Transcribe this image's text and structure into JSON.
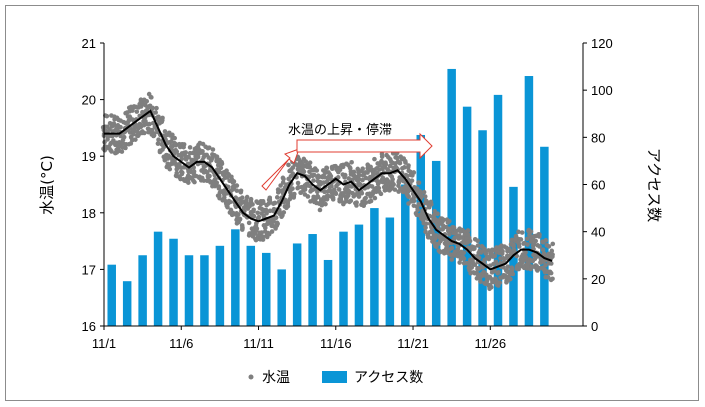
{
  "chart_data": {
    "type": "bar+scatter+line",
    "xlabel": "",
    "ylabel_left": "水温(°C)",
    "ylabel_right": "アクセス数",
    "y_left_lim": [
      16,
      21
    ],
    "y_left_ticks": [
      "16",
      "17",
      "18",
      "19",
      "20",
      "21"
    ],
    "y_right_lim": [
      0,
      120
    ],
    "y_right_ticks": [
      "0",
      "20",
      "40",
      "60",
      "80",
      "100",
      "120"
    ],
    "x_tick_labels": [
      "11/1",
      "11/6",
      "11/11",
      "11/16",
      "11/21",
      "11/26"
    ],
    "x_tick_days": [
      1,
      6,
      11,
      16,
      21,
      26
    ],
    "x_range_days": [
      1,
      31
    ],
    "legend": {
      "placement": "bottom",
      "items": [
        {
          "name": "水温",
          "marker": "dot"
        },
        {
          "name": "アクセス数",
          "marker": "bar"
        }
      ]
    },
    "annotation": "水温の上昇・停滞",
    "bar_series": {
      "name": "アクセス数",
      "color": "#0a95d6",
      "days": [
        1,
        2,
        3,
        4,
        5,
        6,
        7,
        8,
        9,
        10,
        11,
        12,
        13,
        14,
        15,
        16,
        17,
        18,
        19,
        20,
        21,
        22,
        23,
        24,
        25,
        26,
        27,
        28,
        29,
        30
      ],
      "values": [
        26,
        19,
        30,
        40,
        37,
        30,
        30,
        34,
        41,
        34,
        31,
        24,
        35,
        39,
        28,
        40,
        43,
        50,
        46,
        60,
        81,
        70,
        109,
        93,
        83,
        98,
        59,
        106,
        76,
        0
      ]
    },
    "temp_series": {
      "name": "水温",
      "color": "#7f7f7f",
      "days": [
        1.0,
        1.5,
        2.0,
        2.5,
        3.0,
        3.5,
        4.0,
        4.5,
        5.0,
        5.5,
        6.0,
        6.5,
        7.0,
        7.5,
        8.0,
        8.5,
        9.0,
        9.5,
        10.0,
        10.5,
        11.0,
        11.5,
        12.0,
        12.5,
        13.0,
        13.5,
        14.0,
        14.5,
        15.0,
        15.5,
        16.0,
        16.5,
        17.0,
        17.5,
        18.0,
        18.5,
        19.0,
        19.5,
        20.0,
        20.5,
        21.0,
        21.5,
        22.0,
        22.5,
        23.0,
        23.5,
        24.0,
        24.5,
        25.0,
        25.5,
        26.0,
        26.5,
        27.0,
        27.5,
        28.0,
        28.5,
        29.0,
        29.5,
        30.0
      ],
      "values": [
        19.4,
        19.4,
        19.4,
        19.5,
        19.6,
        19.7,
        19.8,
        19.5,
        19.2,
        19.0,
        18.9,
        18.8,
        18.9,
        18.9,
        18.8,
        18.6,
        18.4,
        18.2,
        18.0,
        17.9,
        17.85,
        17.9,
        17.95,
        18.2,
        18.5,
        18.7,
        18.65,
        18.5,
        18.4,
        18.5,
        18.6,
        18.5,
        18.55,
        18.4,
        18.5,
        18.6,
        18.7,
        18.7,
        18.75,
        18.6,
        18.4,
        18.2,
        17.9,
        17.7,
        17.6,
        17.5,
        17.45,
        17.35,
        17.2,
        17.1,
        17.0,
        17.05,
        17.1,
        17.25,
        17.35,
        17.35,
        17.3,
        17.2,
        17.15
      ],
      "smooth_line_color": "#000000"
    }
  }
}
